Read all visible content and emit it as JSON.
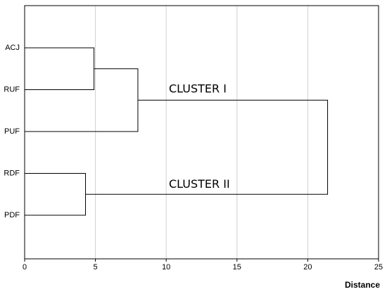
{
  "chart_data": {
    "type": "dendrogram",
    "xlabel": "Distance",
    "xlim": [
      0,
      25
    ],
    "xticks": [
      0,
      5,
      10,
      15,
      20,
      25
    ],
    "grid": true,
    "annotations": [
      "CLUSTER I",
      "CLUSTER II"
    ],
    "tree": {
      "height": 21.4,
      "children": [
        {
          "height": 8.0,
          "children": [
            {
              "height": 4.9,
              "children": [
                {
                  "label": "ACJ"
                },
                {
                  "label": "RUF"
                }
              ]
            },
            {
              "label": "PUF"
            }
          ]
        },
        {
          "height": 4.3,
          "children": [
            {
              "label": "RDF"
            },
            {
              "label": "PDF"
            }
          ]
        }
      ]
    }
  }
}
